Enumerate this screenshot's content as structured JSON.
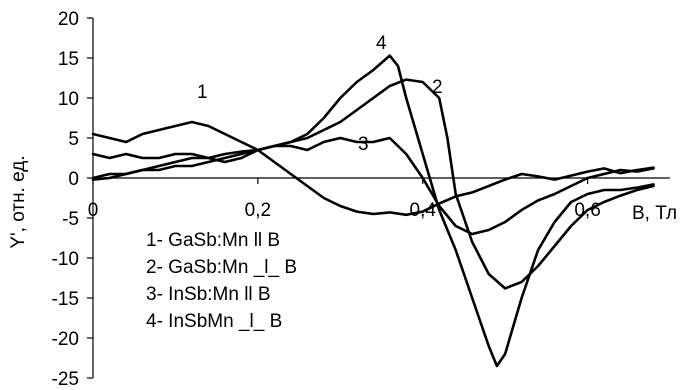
{
  "chart_data": {
    "type": "line",
    "title": "",
    "xlabel": "B, Тл",
    "ylabel": "Y', отн. ед.",
    "xlim": [
      0,
      0.7
    ],
    "ylim": [
      -25,
      20
    ],
    "x_ticks": [
      0,
      0.2,
      0.4,
      0.6
    ],
    "x_tick_labels": [
      "0",
      "0,2",
      "0,4",
      "0,6"
    ],
    "y_ticks": [
      20,
      15,
      10,
      5,
      0,
      -5,
      -10,
      -15,
      -20,
      -25
    ],
    "y_tick_labels": [
      "20",
      "15",
      "10",
      "5",
      "0",
      "-5",
      "-10",
      "-15",
      "-20",
      "-25"
    ],
    "grid": false,
    "legend_position": "bottom-left",
    "legend": [
      "1- GaSb:Mn ll B",
      "2- GaSb:Mn _l_ B",
      "3- InSb:Mn ll B",
      "4- InSbMn _l_ B"
    ],
    "series": [
      {
        "label": "1",
        "x": [
          0,
          0.02,
          0.04,
          0.06,
          0.08,
          0.1,
          0.12,
          0.14,
          0.16,
          0.18,
          0.2,
          0.22,
          0.24,
          0.26,
          0.28,
          0.3,
          0.32,
          0.34,
          0.36,
          0.38,
          0.4,
          0.42,
          0.44,
          0.46,
          0.48,
          0.5,
          0.52,
          0.54,
          0.56,
          0.58,
          0.6,
          0.62,
          0.64,
          0.66,
          0.68
        ],
        "y": [
          5.5,
          5,
          4.5,
          5.5,
          6,
          6.5,
          7,
          6.5,
          5.5,
          4.5,
          3.5,
          2,
          0.5,
          -1,
          -2.5,
          -3.5,
          -4.2,
          -4.5,
          -4.3,
          -4.6,
          -4.2,
          -3.2,
          -2.3,
          -1.8,
          -1,
          -0.2,
          0.5,
          0.2,
          -0.2,
          0.3,
          0.8,
          1.2,
          0.6,
          1,
          1.3
        ]
      },
      {
        "label": "2",
        "x": [
          0,
          0.02,
          0.04,
          0.06,
          0.08,
          0.1,
          0.12,
          0.14,
          0.16,
          0.18,
          0.2,
          0.22,
          0.24,
          0.26,
          0.28,
          0.3,
          0.32,
          0.34,
          0.36,
          0.38,
          0.4,
          0.42,
          0.43,
          0.44,
          0.46,
          0.48,
          0.5,
          0.52,
          0.54,
          0.56,
          0.58,
          0.6,
          0.62,
          0.64,
          0.66,
          0.68
        ],
        "y": [
          -0.2,
          0,
          0.5,
          1,
          1.5,
          2,
          2.5,
          2.5,
          3,
          3.3,
          3.5,
          4,
          4.5,
          5,
          6,
          7,
          8.5,
          10,
          11.5,
          12.3,
          12,
          10,
          5,
          -2,
          -8,
          -12,
          -13.8,
          -13,
          -11,
          -8.5,
          -6,
          -4,
          -3,
          -2.2,
          -1.5,
          -1
        ]
      },
      {
        "label": "3",
        "x": [
          0,
          0.02,
          0.04,
          0.06,
          0.08,
          0.1,
          0.12,
          0.14,
          0.16,
          0.18,
          0.2,
          0.22,
          0.24,
          0.26,
          0.28,
          0.3,
          0.32,
          0.34,
          0.36,
          0.38,
          0.4,
          0.42,
          0.44,
          0.46,
          0.48,
          0.5,
          0.52,
          0.54,
          0.56,
          0.58,
          0.6,
          0.62,
          0.64,
          0.66,
          0.68
        ],
        "y": [
          3,
          2.5,
          3,
          2.5,
          2.5,
          3,
          3,
          2.5,
          2,
          2.5,
          3.5,
          4,
          4,
          3.5,
          4.5,
          5,
          4.5,
          4.5,
          5,
          3,
          0,
          -3.5,
          -6,
          -7,
          -6.5,
          -5.5,
          -4,
          -2.8,
          -2,
          -1,
          0,
          0.5,
          1,
          0.8,
          1.2
        ]
      },
      {
        "label": "4",
        "x": [
          0,
          0.02,
          0.04,
          0.06,
          0.08,
          0.1,
          0.12,
          0.14,
          0.16,
          0.18,
          0.2,
          0.22,
          0.24,
          0.26,
          0.28,
          0.3,
          0.32,
          0.34,
          0.36,
          0.37,
          0.38,
          0.4,
          0.42,
          0.44,
          0.46,
          0.48,
          0.49,
          0.5,
          0.52,
          0.54,
          0.56,
          0.58,
          0.6,
          0.62,
          0.64,
          0.66,
          0.68
        ],
        "y": [
          0,
          0.5,
          0.5,
          1,
          1,
          1.5,
          1.5,
          2,
          2.5,
          3,
          3.5,
          4,
          4.5,
          5.5,
          7.5,
          10,
          12,
          13.5,
          15.3,
          14,
          10,
          3,
          -4,
          -9,
          -15,
          -21,
          -23.5,
          -22,
          -15,
          -9,
          -5.5,
          -3,
          -2,
          -1.5,
          -1.5,
          -1.2,
          -0.8
        ]
      }
    ],
    "curve_labels": [
      "1",
      "2",
      "3",
      "4"
    ]
  }
}
